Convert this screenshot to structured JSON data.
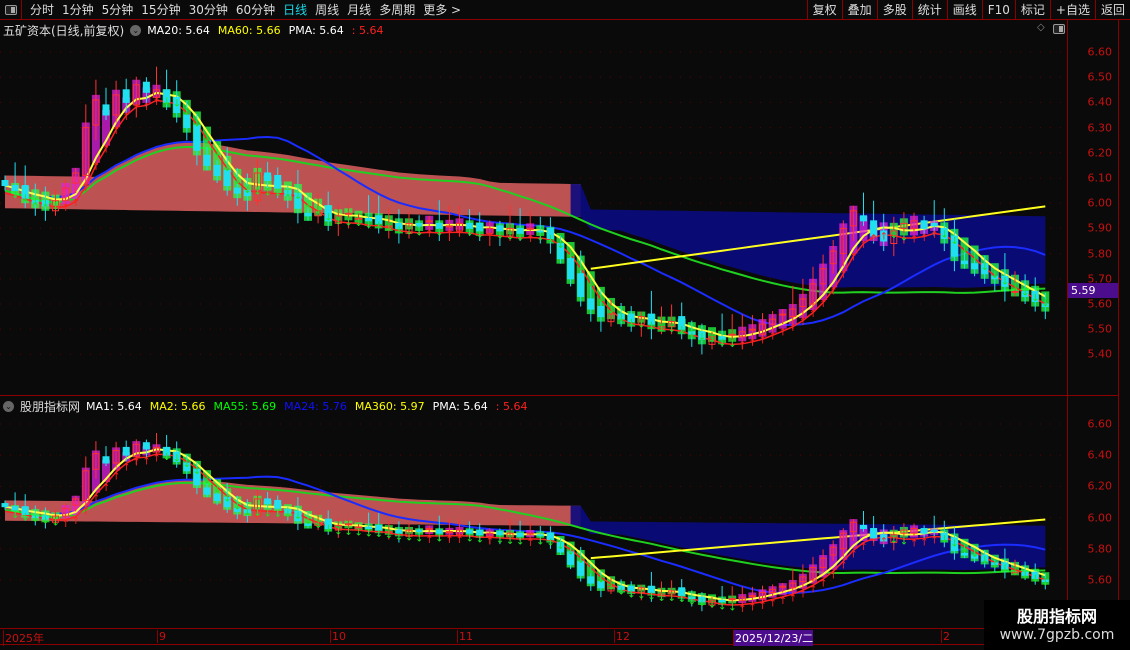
{
  "toolbar": {
    "periods": [
      "分时",
      "1分钟",
      "5分钟",
      "15分钟",
      "30分钟",
      "60分钟",
      "日线",
      "周线",
      "月线",
      "多周期",
      "更多 >"
    ],
    "active_period": "日线",
    "buttons": [
      "复权",
      "叠加",
      "多股",
      "统计",
      "画线",
      "F10",
      "标记",
      "+自选",
      "返回"
    ]
  },
  "top_panel": {
    "title": "五矿资本(日线,前复权)",
    "legend": [
      {
        "label": "MA20: 5.64",
        "color": "#ffffff"
      },
      {
        "label": "MA60: 5.66",
        "color": "#ffff00"
      },
      {
        "label": "PMA: 5.64",
        "color": "#ffffff"
      },
      {
        "label": ": 5.64",
        "color": "#ff2020"
      }
    ],
    "axis_ticks": [
      "6.60",
      "6.50",
      "6.40",
      "6.30",
      "6.20",
      "6.10",
      "6.00",
      "5.90",
      "5.80",
      "5.70",
      "5.60",
      "5.50",
      "5.40"
    ],
    "current_price": "5.59"
  },
  "bottom_panel": {
    "title": "股朋指标网",
    "legend": [
      {
        "label": "MA1: 5.64",
        "color": "#ffffff"
      },
      {
        "label": "MA2: 5.66",
        "color": "#ffff00"
      },
      {
        "label": "MA55: 5.69",
        "color": "#00ff00"
      },
      {
        "label": "MA24: 5.76",
        "color": "#1010ff"
      },
      {
        "label": "MA360: 5.97",
        "color": "#ffff00"
      },
      {
        "label": "PMA: 5.64",
        "color": "#ffffff"
      },
      {
        "label": ": 5.64",
        "color": "#ff2020"
      }
    ],
    "axis_ticks": [
      "6.60",
      "6.40",
      "6.20",
      "6.00",
      "5.80",
      "5.60"
    ]
  },
  "time_axis": {
    "labels": [
      "2025年",
      "9",
      "10",
      "11",
      "12",
      "2025/12/23/二",
      "2"
    ],
    "highlighted": "2025/12/23/二"
  },
  "watermark": {
    "line1": "股朋指标网",
    "line2": "www.7gpzb.com"
  },
  "chart_data": {
    "type": "candlestick",
    "closes": [
      6.07,
      6.05,
      6.02,
      6.0,
      5.99,
      6.01,
      6.06,
      6.12,
      6.3,
      6.41,
      6.35,
      6.43,
      6.4,
      6.47,
      6.44,
      6.45,
      6.4,
      6.36,
      6.3,
      6.21,
      6.15,
      6.11,
      6.07,
      6.04,
      6.03,
      6.12,
      6.09,
      6.06,
      6.03,
      5.98,
      5.95,
      5.97,
      5.93,
      5.95,
      5.96,
      5.94,
      5.93,
      5.92,
      5.91,
      5.9,
      5.92,
      5.91,
      5.93,
      5.9,
      5.91,
      5.92,
      5.9,
      5.89,
      5.9,
      5.89,
      5.9,
      5.88,
      5.9,
      5.89,
      5.86,
      5.78,
      5.7,
      5.63,
      5.58,
      5.55,
      5.56,
      5.54,
      5.53,
      5.55,
      5.52,
      5.51,
      5.53,
      5.5,
      5.48,
      5.46,
      5.47,
      5.46,
      5.48,
      5.49,
      5.5,
      5.52,
      5.54,
      5.56,
      5.58,
      5.62,
      5.68,
      5.74,
      5.81,
      5.9,
      5.97,
      5.93,
      5.87,
      5.85,
      5.89,
      5.92,
      5.93,
      5.9,
      5.91,
      5.86,
      5.79,
      5.76,
      5.74,
      5.72,
      5.7,
      5.67,
      5.65,
      5.63,
      5.61,
      5.59
    ],
    "colors": {
      "up": "#ff3030",
      "down": "#20e0f0",
      "ma_blue": "#1a2cff",
      "ma_green": "#20d020",
      "ma_yellow": "#ffff20",
      "cloud_up": "#d05a5a",
      "cloud_down": "#0a0a80"
    }
  }
}
